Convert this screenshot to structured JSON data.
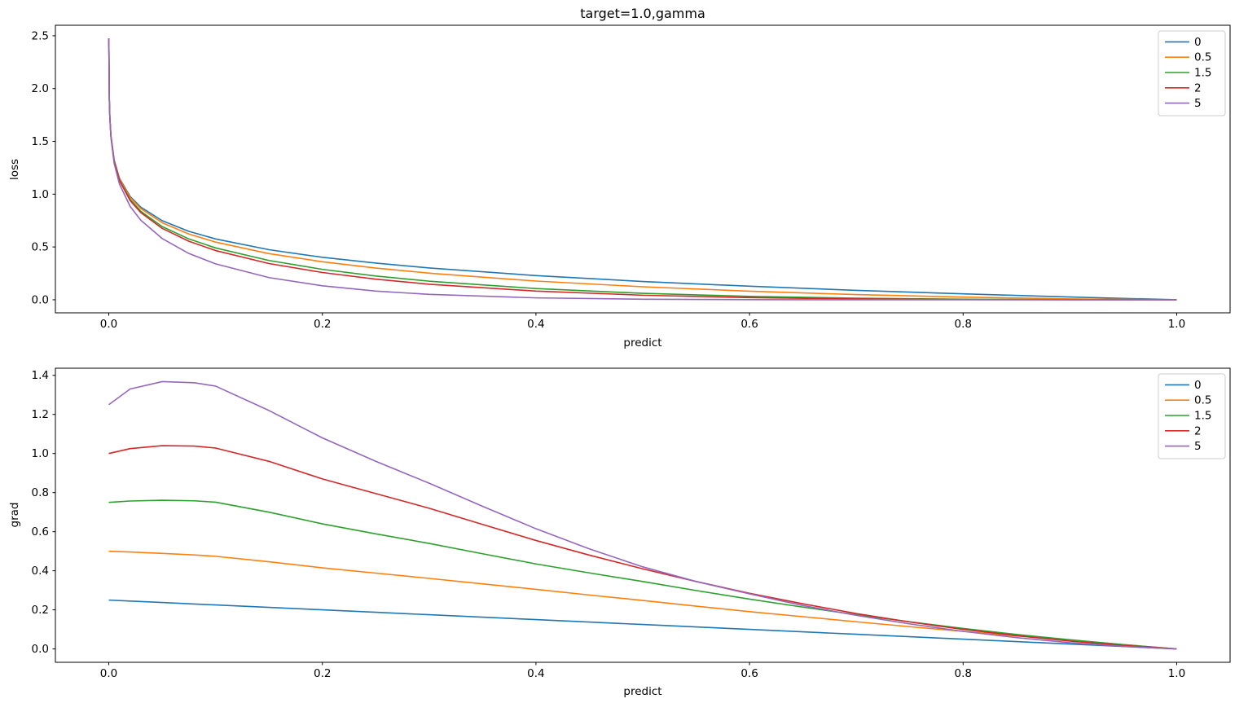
{
  "figure": {
    "background": "#ffffff"
  },
  "chart_data": [
    {
      "type": "line",
      "title": "target=1.0,gamma",
      "xlabel": "predict",
      "ylabel": "loss",
      "xlim": [
        -0.05,
        1.05
      ],
      "ylim": [
        -0.1238,
        2.5997
      ],
      "xticks": [
        0.0,
        0.2,
        0.4,
        0.6,
        0.8,
        1.0
      ],
      "yticks": [
        0.0,
        0.5,
        1.0,
        1.5,
        2.0,
        2.5
      ],
      "grid": false,
      "legend_position": "upper right",
      "x": [
        5e-05,
        0.0005,
        0.001,
        0.002,
        0.005,
        0.01,
        0.02,
        0.03,
        0.05,
        0.075,
        0.1,
        0.15,
        0.2,
        0.25,
        0.3,
        0.4,
        0.5,
        0.6,
        0.7,
        0.8,
        0.9,
        1.0
      ],
      "series": [
        {
          "name": "0",
          "color": "#1f77b4",
          "values": [
            2.476,
            1.9,
            1.727,
            1.554,
            1.325,
            1.151,
            0.978,
            0.877,
            0.749,
            0.648,
            0.576,
            0.474,
            0.402,
            0.347,
            0.301,
            0.229,
            0.173,
            0.128,
            0.089,
            0.056,
            0.026,
            0.0
          ]
        },
        {
          "name": "0.5",
          "color": "#ff7f0e",
          "values": [
            2.476,
            1.9,
            1.726,
            1.552,
            1.321,
            1.145,
            0.968,
            0.863,
            0.73,
            0.623,
            0.546,
            0.437,
            0.36,
            0.3,
            0.252,
            0.177,
            0.123,
            0.081,
            0.049,
            0.025,
            0.008,
            0.0
          ]
        },
        {
          "name": "1.5",
          "color": "#2ca02c",
          "values": [
            2.476,
            1.899,
            1.724,
            1.549,
            1.315,
            1.134,
            0.949,
            0.838,
            0.693,
            0.576,
            0.491,
            0.372,
            0.288,
            0.225,
            0.176,
            0.106,
            0.061,
            0.032,
            0.015,
            0.005,
            0.001,
            0.0
          ]
        },
        {
          "name": "2",
          "color": "#d62728",
          "values": [
            2.476,
            1.898,
            1.723,
            1.548,
            1.311,
            1.128,
            0.939,
            0.825,
            0.676,
            0.554,
            0.466,
            0.343,
            0.258,
            0.195,
            0.147,
            0.082,
            0.043,
            0.02,
            0.008,
            0.002,
            0.0003,
            0.0
          ]
        },
        {
          "name": "5",
          "color": "#9467bd",
          "values": [
            2.475,
            1.895,
            1.718,
            1.538,
            1.292,
            1.095,
            0.884,
            0.753,
            0.58,
            0.438,
            0.34,
            0.21,
            0.132,
            0.082,
            0.051,
            0.018,
            0.005,
            0.001,
            0.0002,
            0.0001,
            0.0,
            0.0
          ]
        }
      ]
    },
    {
      "type": "line",
      "title": "",
      "xlabel": "predict",
      "ylabel": "grad",
      "xlim": [
        -0.05,
        1.05
      ],
      "ylim": [
        -0.0684,
        1.4364
      ],
      "xticks": [
        0.0,
        0.2,
        0.4,
        0.6,
        0.8,
        1.0
      ],
      "yticks": [
        0.0,
        0.2,
        0.4,
        0.6,
        0.8,
        1.0,
        1.2,
        1.4
      ],
      "grid": false,
      "legend_position": "upper right",
      "x": [
        0.0,
        0.02,
        0.05,
        0.08,
        0.1,
        0.15,
        0.2,
        0.25,
        0.3,
        0.35,
        0.4,
        0.45,
        0.5,
        0.55,
        0.6,
        0.65,
        0.7,
        0.75,
        0.8,
        0.85,
        0.9,
        0.95,
        1.0
      ],
      "series": [
        {
          "name": "0",
          "color": "#1f77b4",
          "values": [
            0.25,
            0.245,
            0.2375,
            0.23,
            0.225,
            0.2125,
            0.2,
            0.1875,
            0.175,
            0.1625,
            0.15,
            0.1375,
            0.125,
            0.1125,
            0.1,
            0.0875,
            0.075,
            0.0625,
            0.05,
            0.0375,
            0.025,
            0.0125,
            0.0
          ]
        },
        {
          "name": "0.5",
          "color": "#ff7f0e",
          "values": [
            0.5,
            0.496,
            0.489,
            0.481,
            0.474,
            0.446,
            0.415,
            0.388,
            0.361,
            0.333,
            0.305,
            0.276,
            0.248,
            0.219,
            0.191,
            0.165,
            0.139,
            0.114,
            0.09,
            0.067,
            0.045,
            0.022,
            0.0
          ]
        },
        {
          "name": "1.5",
          "color": "#2ca02c",
          "values": [
            0.75,
            0.757,
            0.761,
            0.758,
            0.751,
            0.7,
            0.64,
            0.589,
            0.54,
            0.487,
            0.435,
            0.389,
            0.345,
            0.299,
            0.255,
            0.214,
            0.175,
            0.139,
            0.105,
            0.074,
            0.047,
            0.022,
            0.0
          ]
        },
        {
          "name": "2",
          "color": "#d62728",
          "values": [
            1.0,
            1.025,
            1.04,
            1.038,
            1.028,
            0.96,
            0.87,
            0.795,
            0.72,
            0.637,
            0.555,
            0.48,
            0.41,
            0.345,
            0.285,
            0.231,
            0.181,
            0.138,
            0.1,
            0.068,
            0.04,
            0.018,
            0.0
          ]
        },
        {
          "name": "5",
          "color": "#9467bd",
          "values": [
            1.25,
            1.33,
            1.368,
            1.362,
            1.345,
            1.22,
            1.08,
            0.96,
            0.848,
            0.73,
            0.615,
            0.512,
            0.42,
            0.345,
            0.282,
            0.222,
            0.172,
            0.128,
            0.09,
            0.058,
            0.032,
            0.013,
            0.0
          ]
        }
      ]
    }
  ]
}
